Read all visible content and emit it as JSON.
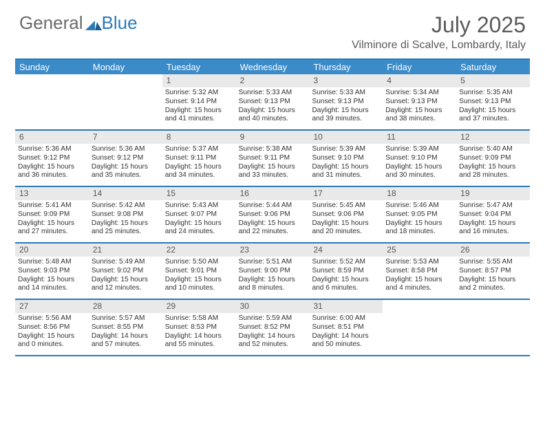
{
  "logo": {
    "part1": "General",
    "part2": "Blue"
  },
  "title": "July 2025",
  "location": "Vilminore di Scalve, Lombardy, Italy",
  "colors": {
    "header_bg": "#3b8bc9",
    "border": "#2978b5",
    "daynum_bg": "#e9e9e9",
    "text": "#333333",
    "title_color": "#5a5a5a"
  },
  "day_names": [
    "Sunday",
    "Monday",
    "Tuesday",
    "Wednesday",
    "Thursday",
    "Friday",
    "Saturday"
  ],
  "weeks": [
    [
      {
        "n": "",
        "empty": true
      },
      {
        "n": "",
        "empty": true
      },
      {
        "n": "1",
        "sr": "Sunrise: 5:32 AM",
        "ss": "Sunset: 9:14 PM",
        "dl1": "Daylight: 15 hours",
        "dl2": "and 41 minutes."
      },
      {
        "n": "2",
        "sr": "Sunrise: 5:33 AM",
        "ss": "Sunset: 9:13 PM",
        "dl1": "Daylight: 15 hours",
        "dl2": "and 40 minutes."
      },
      {
        "n": "3",
        "sr": "Sunrise: 5:33 AM",
        "ss": "Sunset: 9:13 PM",
        "dl1": "Daylight: 15 hours",
        "dl2": "and 39 minutes."
      },
      {
        "n": "4",
        "sr": "Sunrise: 5:34 AM",
        "ss": "Sunset: 9:13 PM",
        "dl1": "Daylight: 15 hours",
        "dl2": "and 38 minutes."
      },
      {
        "n": "5",
        "sr": "Sunrise: 5:35 AM",
        "ss": "Sunset: 9:13 PM",
        "dl1": "Daylight: 15 hours",
        "dl2": "and 37 minutes."
      }
    ],
    [
      {
        "n": "6",
        "sr": "Sunrise: 5:36 AM",
        "ss": "Sunset: 9:12 PM",
        "dl1": "Daylight: 15 hours",
        "dl2": "and 36 minutes."
      },
      {
        "n": "7",
        "sr": "Sunrise: 5:36 AM",
        "ss": "Sunset: 9:12 PM",
        "dl1": "Daylight: 15 hours",
        "dl2": "and 35 minutes."
      },
      {
        "n": "8",
        "sr": "Sunrise: 5:37 AM",
        "ss": "Sunset: 9:11 PM",
        "dl1": "Daylight: 15 hours",
        "dl2": "and 34 minutes."
      },
      {
        "n": "9",
        "sr": "Sunrise: 5:38 AM",
        "ss": "Sunset: 9:11 PM",
        "dl1": "Daylight: 15 hours",
        "dl2": "and 33 minutes."
      },
      {
        "n": "10",
        "sr": "Sunrise: 5:39 AM",
        "ss": "Sunset: 9:10 PM",
        "dl1": "Daylight: 15 hours",
        "dl2": "and 31 minutes."
      },
      {
        "n": "11",
        "sr": "Sunrise: 5:39 AM",
        "ss": "Sunset: 9:10 PM",
        "dl1": "Daylight: 15 hours",
        "dl2": "and 30 minutes."
      },
      {
        "n": "12",
        "sr": "Sunrise: 5:40 AM",
        "ss": "Sunset: 9:09 PM",
        "dl1": "Daylight: 15 hours",
        "dl2": "and 28 minutes."
      }
    ],
    [
      {
        "n": "13",
        "sr": "Sunrise: 5:41 AM",
        "ss": "Sunset: 9:09 PM",
        "dl1": "Daylight: 15 hours",
        "dl2": "and 27 minutes."
      },
      {
        "n": "14",
        "sr": "Sunrise: 5:42 AM",
        "ss": "Sunset: 9:08 PM",
        "dl1": "Daylight: 15 hours",
        "dl2": "and 25 minutes."
      },
      {
        "n": "15",
        "sr": "Sunrise: 5:43 AM",
        "ss": "Sunset: 9:07 PM",
        "dl1": "Daylight: 15 hours",
        "dl2": "and 24 minutes."
      },
      {
        "n": "16",
        "sr": "Sunrise: 5:44 AM",
        "ss": "Sunset: 9:06 PM",
        "dl1": "Daylight: 15 hours",
        "dl2": "and 22 minutes."
      },
      {
        "n": "17",
        "sr": "Sunrise: 5:45 AM",
        "ss": "Sunset: 9:06 PM",
        "dl1": "Daylight: 15 hours",
        "dl2": "and 20 minutes."
      },
      {
        "n": "18",
        "sr": "Sunrise: 5:46 AM",
        "ss": "Sunset: 9:05 PM",
        "dl1": "Daylight: 15 hours",
        "dl2": "and 18 minutes."
      },
      {
        "n": "19",
        "sr": "Sunrise: 5:47 AM",
        "ss": "Sunset: 9:04 PM",
        "dl1": "Daylight: 15 hours",
        "dl2": "and 16 minutes."
      }
    ],
    [
      {
        "n": "20",
        "sr": "Sunrise: 5:48 AM",
        "ss": "Sunset: 9:03 PM",
        "dl1": "Daylight: 15 hours",
        "dl2": "and 14 minutes."
      },
      {
        "n": "21",
        "sr": "Sunrise: 5:49 AM",
        "ss": "Sunset: 9:02 PM",
        "dl1": "Daylight: 15 hours",
        "dl2": "and 12 minutes."
      },
      {
        "n": "22",
        "sr": "Sunrise: 5:50 AM",
        "ss": "Sunset: 9:01 PM",
        "dl1": "Daylight: 15 hours",
        "dl2": "and 10 minutes."
      },
      {
        "n": "23",
        "sr": "Sunrise: 5:51 AM",
        "ss": "Sunset: 9:00 PM",
        "dl1": "Daylight: 15 hours",
        "dl2": "and 8 minutes."
      },
      {
        "n": "24",
        "sr": "Sunrise: 5:52 AM",
        "ss": "Sunset: 8:59 PM",
        "dl1": "Daylight: 15 hours",
        "dl2": "and 6 minutes."
      },
      {
        "n": "25",
        "sr": "Sunrise: 5:53 AM",
        "ss": "Sunset: 8:58 PM",
        "dl1": "Daylight: 15 hours",
        "dl2": "and 4 minutes."
      },
      {
        "n": "26",
        "sr": "Sunrise: 5:55 AM",
        "ss": "Sunset: 8:57 PM",
        "dl1": "Daylight: 15 hours",
        "dl2": "and 2 minutes."
      }
    ],
    [
      {
        "n": "27",
        "sr": "Sunrise: 5:56 AM",
        "ss": "Sunset: 8:56 PM",
        "dl1": "Daylight: 15 hours",
        "dl2": "and 0 minutes."
      },
      {
        "n": "28",
        "sr": "Sunrise: 5:57 AM",
        "ss": "Sunset: 8:55 PM",
        "dl1": "Daylight: 14 hours",
        "dl2": "and 57 minutes."
      },
      {
        "n": "29",
        "sr": "Sunrise: 5:58 AM",
        "ss": "Sunset: 8:53 PM",
        "dl1": "Daylight: 14 hours",
        "dl2": "and 55 minutes."
      },
      {
        "n": "30",
        "sr": "Sunrise: 5:59 AM",
        "ss": "Sunset: 8:52 PM",
        "dl1": "Daylight: 14 hours",
        "dl2": "and 52 minutes."
      },
      {
        "n": "31",
        "sr": "Sunrise: 6:00 AM",
        "ss": "Sunset: 8:51 PM",
        "dl1": "Daylight: 14 hours",
        "dl2": "and 50 minutes."
      },
      {
        "n": "",
        "empty": true
      },
      {
        "n": "",
        "empty": true
      }
    ]
  ]
}
